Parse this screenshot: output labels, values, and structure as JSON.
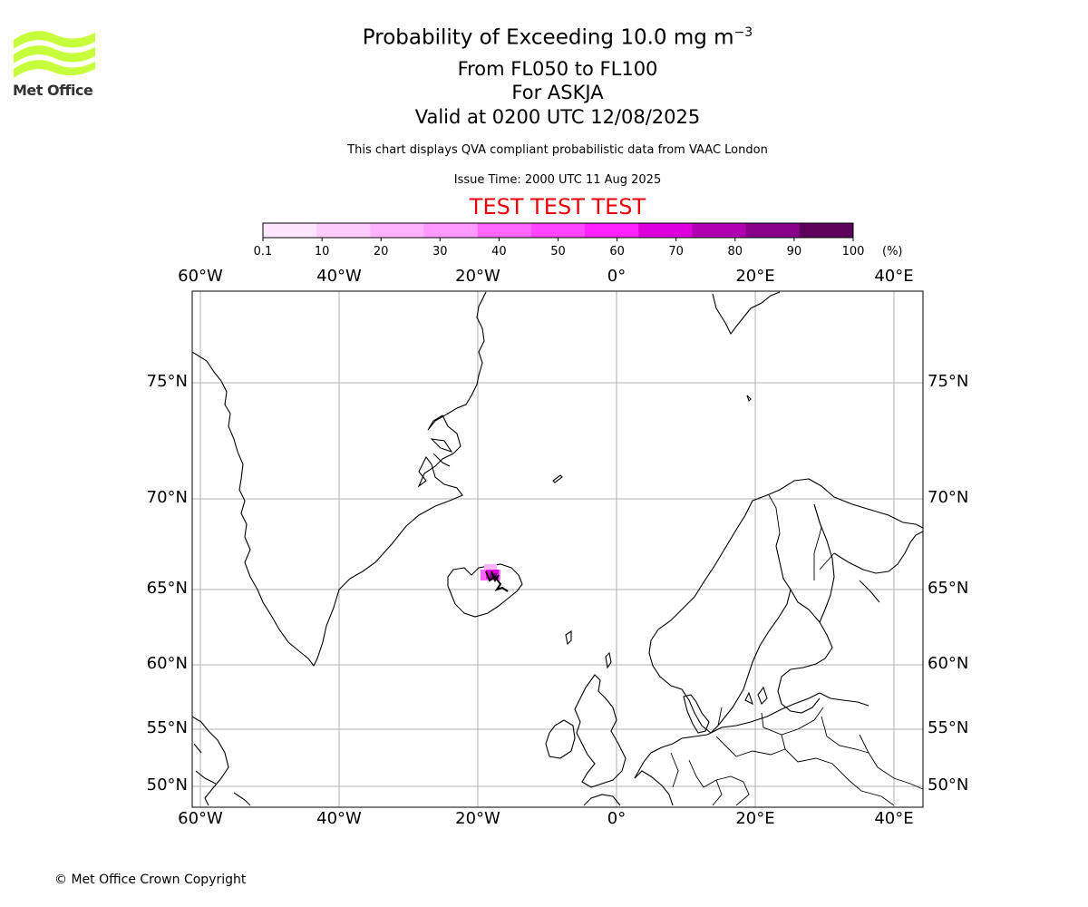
{
  "logo": {
    "text": "Met Office",
    "color": "#c8ff3c"
  },
  "title": {
    "main_prefix": "Probability of Exceeding 10.0 mg m",
    "main_exp": "−3",
    "levels": "From FL050 to FL100",
    "volcano": "For ASKJA",
    "valid": "Valid at 0200 UTC 12/08/2025",
    "description": "This chart displays QVA compliant probabilistic data from VAAC London",
    "issue_time": "Issue Time: 2000 UTC 11 Aug 2025",
    "test_banner": "TEST TEST TEST"
  },
  "colorbar": {
    "ticks": [
      "0.1",
      "10",
      "20",
      "30",
      "40",
      "50",
      "60",
      "70",
      "80",
      "90",
      "100"
    ],
    "unit": "(%)",
    "colors": [
      "#ffe6ff",
      "#ffccff",
      "#ffb3ff",
      "#ff99ff",
      "#ff66ff",
      "#ff44ff",
      "#ff22ff",
      "#dd00dd",
      "#b000b0",
      "#880088",
      "#5c005c"
    ]
  },
  "map": {
    "lon_labels": [
      "60°W",
      "40°W",
      "20°W",
      "0°",
      "20°E",
      "40°E"
    ],
    "lat_labels": [
      "75°N",
      "70°N",
      "65°N",
      "60°N",
      "55°N",
      "50°N"
    ],
    "lon_values": [
      -60,
      -40,
      -20,
      0,
      20,
      40
    ],
    "lat_values": [
      75,
      70,
      65,
      60,
      55,
      50
    ],
    "gridline_color": "#b0b0b0"
  },
  "copyright": "© Met Office Crown Copyright"
}
